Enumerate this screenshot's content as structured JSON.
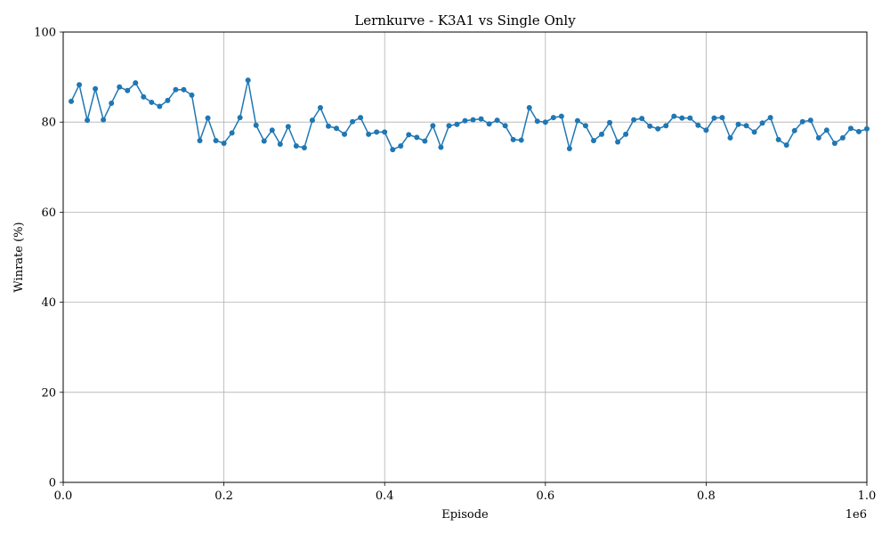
{
  "chart_data": {
    "type": "line",
    "title": "Lernkurve - K3A1 vs Single Only",
    "xlabel": "Episode",
    "ylabel": "Winrate (%)",
    "x_offset_label": "1e6",
    "xlim": [
      0,
      1000000
    ],
    "ylim": [
      0,
      100
    ],
    "x_ticks": [
      0,
      200000,
      400000,
      600000,
      800000,
      1000000
    ],
    "x_tick_labels": [
      "0.0",
      "0.2",
      "0.4",
      "0.6",
      "0.8",
      "1.0"
    ],
    "y_ticks": [
      0,
      20,
      40,
      60,
      80,
      100
    ],
    "y_tick_labels": [
      "0",
      "20",
      "40",
      "60",
      "80",
      "100"
    ],
    "grid": true,
    "line_color": "#1f77b4",
    "series": [
      {
        "x": [
          10000,
          20000,
          30000,
          40000,
          50000,
          60000,
          70000,
          80000,
          90000,
          100000,
          110000,
          120000,
          130000,
          140000,
          150000,
          160000,
          170000,
          180000,
          190000,
          200000,
          210000,
          220000,
          230000,
          240000,
          250000,
          260000,
          270000,
          280000,
          290000,
          300000,
          310000,
          320000,
          330000,
          340000,
          350000,
          360000,
          370000,
          380000,
          390000,
          400000,
          410000,
          420000,
          430000,
          440000,
          450000,
          460000,
          470000,
          480000,
          490000,
          500000,
          510000,
          520000,
          530000,
          540000,
          550000,
          560000,
          570000,
          580000,
          590000,
          600000,
          610000,
          620000,
          630000,
          640000,
          650000,
          660000,
          670000,
          680000,
          690000,
          700000,
          710000,
          720000,
          730000,
          740000,
          750000,
          760000,
          770000,
          780000,
          790000,
          800000,
          810000,
          820000,
          830000,
          840000,
          850000,
          860000,
          870000,
          880000,
          890000,
          900000,
          910000,
          920000,
          930000,
          940000,
          950000,
          960000,
          970000,
          980000,
          990000,
          1000000
        ],
        "values": [
          84.6,
          88.3,
          80.4,
          87.4,
          80.5,
          84.2,
          87.8,
          87.0,
          88.7,
          85.6,
          84.4,
          83.5,
          84.8,
          87.2,
          87.2,
          86.0,
          75.9,
          80.9,
          75.9,
          75.3,
          77.6,
          81.0,
          89.3,
          79.3,
          75.8,
          78.2,
          75.1,
          79.0,
          74.7,
          74.3,
          80.4,
          83.2,
          79.1,
          78.6,
          77.3,
          80.1,
          81.0,
          77.3,
          77.8,
          77.8,
          73.9,
          74.7,
          77.2,
          76.6,
          75.8,
          79.2,
          74.4,
          79.2,
          79.5,
          80.3,
          80.5,
          80.7,
          79.6,
          80.4,
          79.2,
          76.1,
          76.0,
          83.2,
          80.2,
          80.0,
          81.0,
          81.3,
          74.1,
          80.3,
          79.2,
          75.9,
          77.3,
          79.9,
          75.6,
          77.3,
          80.5,
          80.8,
          79.1,
          78.5,
          79.2,
          81.3,
          80.9,
          80.9,
          79.3,
          78.2,
          80.9,
          81.0,
          76.5,
          79.5,
          79.2,
          77.8,
          79.8,
          81.0,
          76.1,
          74.9,
          78.1,
          80.1,
          80.4,
          76.5,
          78.2,
          75.3,
          76.5,
          78.6,
          77.9,
          78.5
        ]
      }
    ]
  }
}
